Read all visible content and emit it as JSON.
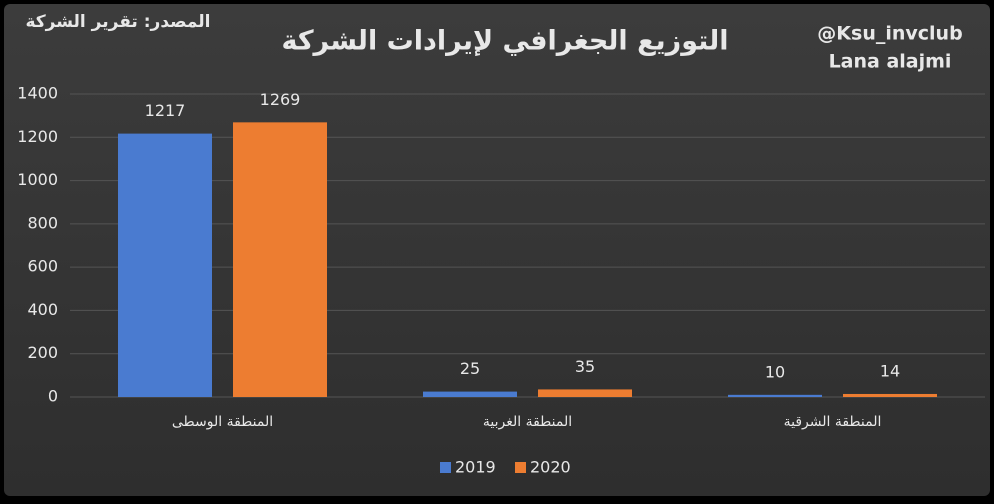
{
  "chart_data": {
    "type": "bar",
    "title": "التوزيع الجغرافي لإيرادات الشركة",
    "annotations": [
      "المصدر: تقرير الشركة",
      "@Ksu_invclub",
      "Lana alajmi"
    ],
    "categories": [
      "المنطقة الوسطى",
      "المنطقة الغربية",
      "المنطقة الشرقية"
    ],
    "series": [
      {
        "name": "2019",
        "color": "#4a7bd0",
        "values": [
          1217,
          25,
          10
        ]
      },
      {
        "name": "2020",
        "color": "#ed7d31",
        "values": [
          1269,
          35,
          14
        ]
      }
    ],
    "ylim": [
      0,
      1400
    ],
    "yticks": [
      0,
      200,
      400,
      600,
      800,
      1000,
      1200,
      1400
    ],
    "grid": true,
    "legend": "bottom"
  }
}
